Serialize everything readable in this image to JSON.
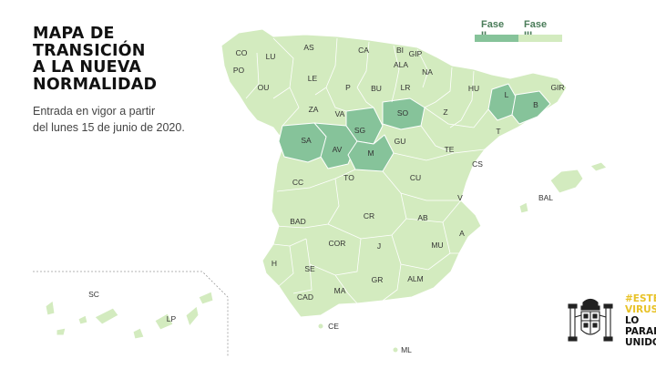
{
  "header": {
    "title_lines": [
      "MAPA DE",
      "TRANSICIÓN",
      "A LA NUEVA",
      "NORMALIDAD"
    ],
    "subtitle_lines": [
      "Entrada en vigor a partir",
      "del lunes 15 de junio de 2020."
    ]
  },
  "legend": {
    "items": [
      {
        "label": "Fase II",
        "color": "#86c39a"
      },
      {
        "label": "Fase III",
        "color": "#d3ebbf"
      }
    ]
  },
  "colors": {
    "fase_ii": "#86c39a",
    "fase_iii": "#d3ebbf",
    "border": "#ffffff",
    "dotted_box": "#9a9a9a"
  },
  "provinces": {
    "CO": {
      "label": "CO",
      "phase": "Fase III"
    },
    "LU": {
      "label": "LU",
      "phase": "Fase III"
    },
    "AS": {
      "label": "AS",
      "phase": "Fase III"
    },
    "CA": {
      "label": "CA",
      "phase": "Fase III"
    },
    "BI": {
      "label": "BI",
      "phase": "Fase III"
    },
    "GIP": {
      "label": "GIP",
      "phase": "Fase III"
    },
    "PO": {
      "label": "PO",
      "phase": "Fase III"
    },
    "ALA": {
      "label": "ALA",
      "phase": "Fase III"
    },
    "NA": {
      "label": "NA",
      "phase": "Fase III"
    },
    "LE": {
      "label": "LE",
      "phase": "Fase III"
    },
    "OU": {
      "label": "OU",
      "phase": "Fase III"
    },
    "P": {
      "label": "P",
      "phase": "Fase III"
    },
    "BU": {
      "label": "BU",
      "phase": "Fase III"
    },
    "LR": {
      "label": "LR",
      "phase": "Fase III"
    },
    "HU": {
      "label": "HU",
      "phase": "Fase III"
    },
    "GIR": {
      "label": "GIR",
      "phase": "Fase III"
    },
    "L": {
      "label": "L",
      "phase": "Fase II"
    },
    "B": {
      "label": "B",
      "phase": "Fase II"
    },
    "ZA": {
      "label": "ZA",
      "phase": "Fase III"
    },
    "VA": {
      "label": "VA",
      "phase": "Fase III"
    },
    "SO": {
      "label": "SO",
      "phase": "Fase II"
    },
    "Z": {
      "label": "Z",
      "phase": "Fase III"
    },
    "SG": {
      "label": "SG",
      "phase": "Fase II"
    },
    "T": {
      "label": "T",
      "phase": "Fase III"
    },
    "SA": {
      "label": "SA",
      "phase": "Fase II"
    },
    "AV": {
      "label": "AV",
      "phase": "Fase II"
    },
    "GU": {
      "label": "GU",
      "phase": "Fase III"
    },
    "TE": {
      "label": "TE",
      "phase": "Fase III"
    },
    "M": {
      "label": "M",
      "phase": "Fase II"
    },
    "CS": {
      "label": "CS",
      "phase": "Fase III"
    },
    "CC": {
      "label": "CC",
      "phase": "Fase III"
    },
    "TO": {
      "label": "TO",
      "phase": "Fase III"
    },
    "CU": {
      "label": "CU",
      "phase": "Fase III"
    },
    "V": {
      "label": "V",
      "phase": "Fase III"
    },
    "BAL": {
      "label": "BAL",
      "phase": "Fase III"
    },
    "BAD": {
      "label": "BAD",
      "phase": "Fase III"
    },
    "CR": {
      "label": "CR",
      "phase": "Fase III"
    },
    "AB": {
      "label": "AB",
      "phase": "Fase III"
    },
    "A": {
      "label": "A",
      "phase": "Fase III"
    },
    "COR": {
      "label": "COR",
      "phase": "Fase III"
    },
    "J": {
      "label": "J",
      "phase": "Fase III"
    },
    "MU": {
      "label": "MU",
      "phase": "Fase III"
    },
    "H": {
      "label": "H",
      "phase": "Fase III"
    },
    "SE": {
      "label": "SE",
      "phase": "Fase III"
    },
    "GR": {
      "label": "GR",
      "phase": "Fase III"
    },
    "ALM": {
      "label": "ALM",
      "phase": "Fase III"
    },
    "SC": {
      "label": "SC",
      "phase": "Fase III"
    },
    "LP": {
      "label": "LP",
      "phase": "Fase III"
    },
    "CAD": {
      "label": "CAD",
      "phase": "Fase III"
    },
    "MA": {
      "label": "MA",
      "phase": "Fase III"
    },
    "CE": {
      "label": "CE",
      "phase": "Fase III"
    },
    "ML": {
      "label": "ML",
      "phase": "Fase III"
    }
  },
  "badge": {
    "line1": "#ESTE",
    "line2": "VIRUS",
    "line3": "LO",
    "line4": "PARAMOS",
    "line5": "UNIDOS"
  },
  "icons": {
    "gov_logo": "coat-of-arms-icon"
  }
}
